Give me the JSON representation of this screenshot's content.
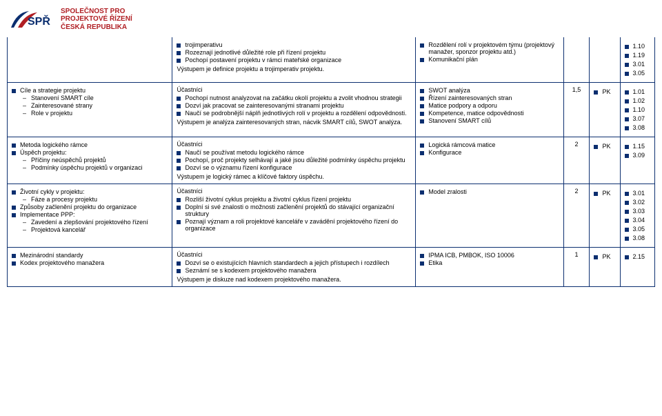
{
  "logo": {
    "l1": "SPOLEČNOST PRO",
    "l2": "PROJEKTOVÉ ŘÍZENÍ",
    "l3": "ČESKÁ REPUBLIKA"
  },
  "colors": {
    "border": "#0b2e6f",
    "bullet": "#0b2e6f",
    "brand": "#b01e23"
  },
  "rows": [
    {
      "topics": {
        "bullets": [
          "trojimperativu",
          "Rozeznají jednotlivé důležité role při řízení projektu",
          "Pochopí postavení projektu v rámci mateřské organizace"
        ],
        "output": "Výstupem je definice projektu a trojimperativ projektu."
      },
      "tools": [
        "Rozdělení rolí v projektovém týmu (projektový manažer, sponzor projektu atd.)",
        "Komunikační plán"
      ],
      "weight": "",
      "pk": "",
      "codes": [
        "1.10",
        "1.19",
        "3.01",
        "3.05"
      ]
    },
    {
      "left": {
        "bullets": [
          {
            "t": "Cíle a strategie projektu",
            "sub": [
              "Stanovení SMART cíle",
              "Zainteresované strany",
              "Role v projektu"
            ]
          }
        ]
      },
      "topics": {
        "title": "Účastníci",
        "bullets": [
          "Pochopí nutnost analyzovat na začátku okolí projektu a zvolit vhodnou strategii",
          "Dozví jak pracovat se zainteresovanými stranami projektu",
          "Naučí se podrobnější náplň jednotlivých rolí v projektu a rozdělení odpovědnosti."
        ],
        "output": "Výstupem je analýza zainteresovaných stran, nácvik SMART cílů, SWOT analýza."
      },
      "tools": [
        "SWOT analýza",
        "Řízení zainteresovaných stran",
        "Matice podpory a odporu",
        "Kompetence, matice odpovědnosti",
        "Stanovení SMART cílů"
      ],
      "weight": "1,5",
      "pk": "PK",
      "codes": [
        "1.01",
        "1.02",
        "1.10",
        "3.07",
        "3.08"
      ]
    },
    {
      "left": {
        "bullets": [
          {
            "t": "Metoda logického rámce"
          },
          {
            "t": "Úspěch projektu:",
            "sub": [
              "Příčiny neúspěchů projektů",
              "Podmínky úspěchu projektů v organizaci"
            ]
          }
        ]
      },
      "topics": {
        "title": "Účastníci",
        "bullets": [
          "Naučí se používat metodu logického rámce",
          "Pochopí, proč projekty selhávají a jaké jsou důležité podmínky úspěchu projektu",
          "Dozví se o významu řízení konfigurace"
        ],
        "output": "Výstupem je logický rámec a klíčové faktory úspěchu."
      },
      "tools": [
        "Logická rámcová matice",
        "Konfigurace"
      ],
      "weight": "2",
      "pk": "PK",
      "codes": [
        "1.15",
        "3.09"
      ]
    },
    {
      "left": {
        "bullets": [
          {
            "t": "Životní cykly v projektu:",
            "sub": [
              "Fáze a procesy projektu"
            ]
          },
          {
            "t": "Způsoby začlenění projektu do organizace"
          },
          {
            "t": "Implementace PPP:",
            "sub": [
              "Zavedení a zlepšování projektového řízení",
              "Projektová kancelář"
            ]
          }
        ]
      },
      "topics": {
        "title": "Účastníci",
        "bullets": [
          "Rozliší životní cyklus projektu a životní cyklus řízení projektu",
          "Doplní si své znalosti o možnosti začlenění projektů do stávající organizační struktury",
          "Poznají význam a roli projektové kanceláře v zavádění projektového řízení do organizace"
        ]
      },
      "tools": [
        "Model zralosti"
      ],
      "weight": "2",
      "pk": "PK",
      "codes": [
        "3.01",
        "3.02",
        "3.03",
        "3.04",
        "3.05",
        "3.08"
      ]
    },
    {
      "left": {
        "bullets": [
          {
            "t": "Mezinárodní standardy"
          },
          {
            "t": "Kodex projektového manažera"
          }
        ]
      },
      "topics": {
        "title": "Účastníci",
        "bullets": [
          "Dozví se o existujících hlavních standardech a jejich přístupech i rozdílech",
          "Seznámí se s kodexem projektového manažera"
        ],
        "output": "Výstupem je diskuze nad kodexem projektového manažera."
      },
      "tools": [
        "IPMA ICB, PMBOK, ISO 10006",
        "Etika"
      ],
      "weight": "1",
      "pk": "PK",
      "codes": [
        "2.15"
      ]
    }
  ]
}
